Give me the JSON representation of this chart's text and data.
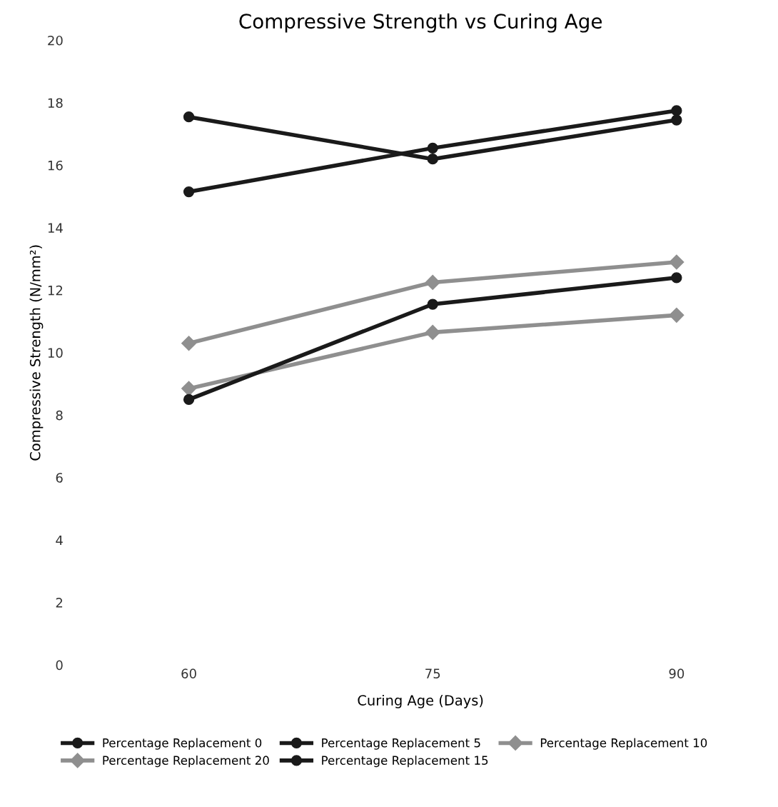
{
  "chart_data": {
    "type": "line",
    "title": "Compressive Strength vs Curing Age",
    "xlabel": "Curing Age (Days)",
    "ylabel": "Compressive Strength (N/mm²)",
    "categories": [
      "60",
      "75",
      "90"
    ],
    "series": [
      {
        "name": "Percentage Replacement 0",
        "color": "#1a1a1a",
        "marker": "circle",
        "values": [
          15.15,
          16.55,
          17.75
        ]
      },
      {
        "name": "Percentage Replacement 5",
        "color": "#1a1a1a",
        "marker": "circle",
        "values": [
          17.55,
          16.2,
          17.45
        ]
      },
      {
        "name": "Percentage Replacement 10",
        "color": "#8f8f8f",
        "marker": "diamond",
        "values": [
          10.3,
          12.25,
          12.9
        ]
      },
      {
        "name": "Percentage Replacement 20",
        "color": "#8f8f8f",
        "marker": "diamond",
        "values": [
          8.85,
          10.65,
          11.2
        ]
      },
      {
        "name": "Percentage Replacement 15",
        "color": "#1a1a1a",
        "marker": "circle",
        "values": [
          8.5,
          11.55,
          12.4
        ]
      }
    ],
    "ylim": [
      0,
      20
    ],
    "yticks": [
      0,
      2,
      4,
      6,
      8,
      10,
      12,
      14,
      16,
      18,
      20
    ],
    "grid": false,
    "legend": "bottom"
  }
}
